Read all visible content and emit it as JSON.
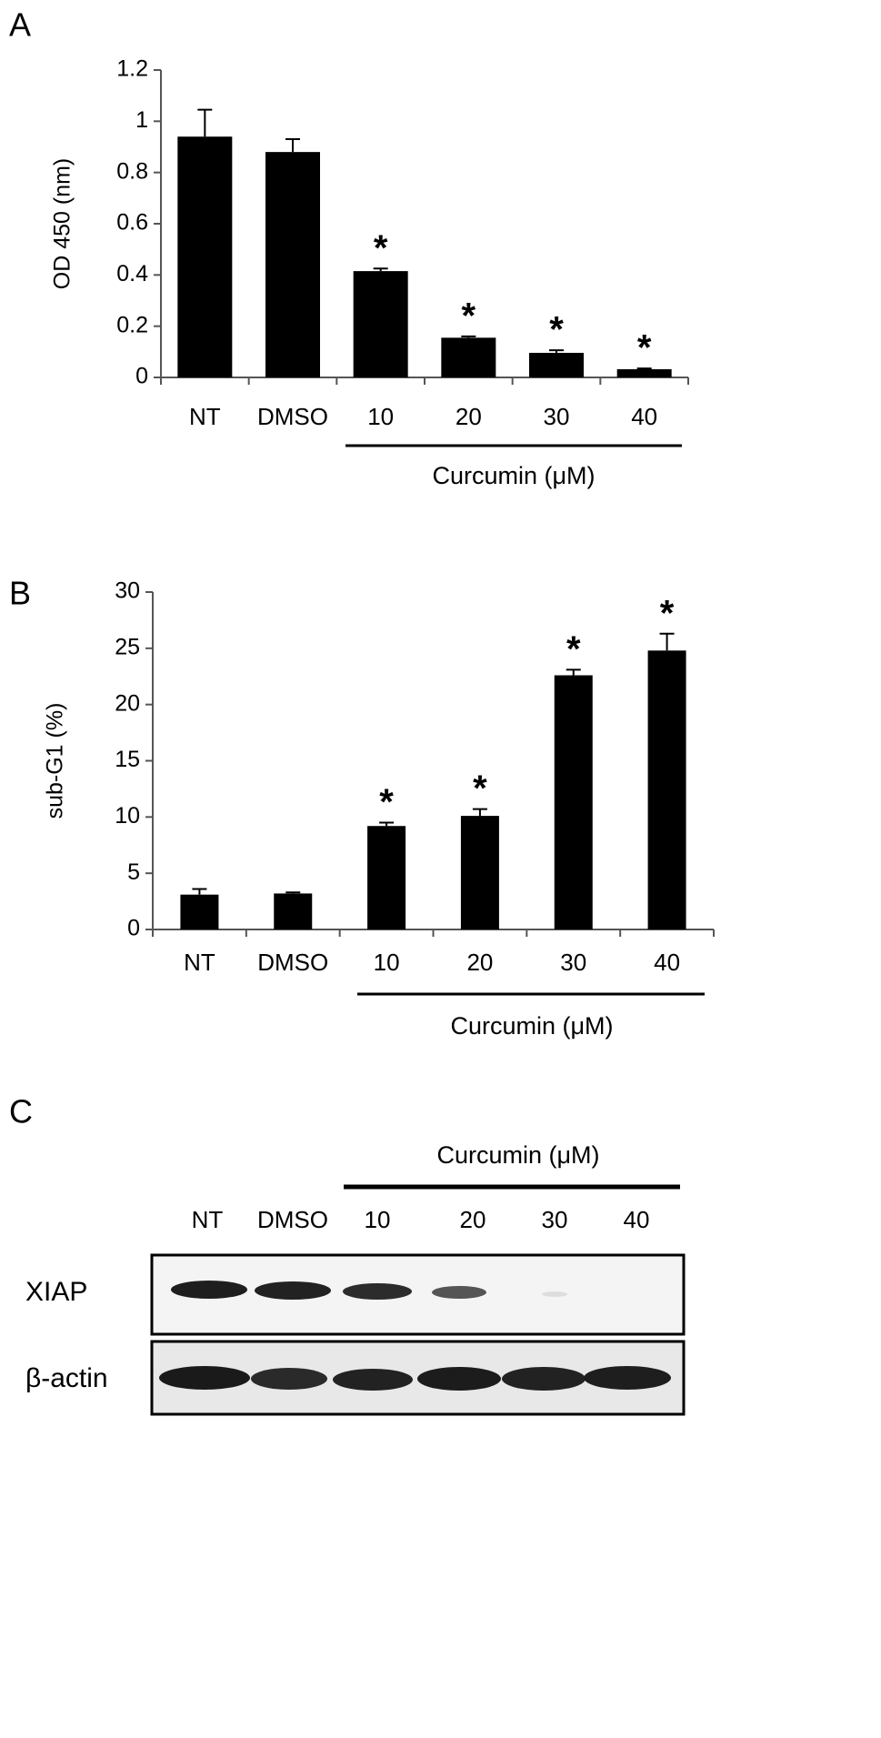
{
  "chart_data": [
    {
      "type": "bar",
      "panel_label": "A",
      "y_label": "OD 450 (nm)",
      "categories": [
        "NT",
        "DMSO",
        "10",
        "20",
        "30",
        "40"
      ],
      "values": [
        0.94,
        0.88,
        0.415,
        0.155,
        0.096,
        0.032
      ],
      "errors": [
        0.105,
        0.05,
        0.01,
        0.005,
        0.01,
        0.003
      ],
      "significance_labels": [
        null,
        null,
        "*",
        "*",
        "*",
        "*"
      ],
      "group_label": "Curcumin (μM)",
      "color": "#000000",
      "ylim": [
        0,
        1.2
      ],
      "yticks": [
        0,
        0.2,
        0.4,
        0.6,
        0.8,
        1,
        1.2
      ]
    },
    {
      "type": "bar",
      "panel_label": "B",
      "y_label": "sub-G1 (%)",
      "categories": [
        "NT",
        "DMSO",
        "10",
        "20",
        "30",
        "40"
      ],
      "values": [
        3.1,
        3.2,
        9.2,
        10.1,
        22.6,
        24.8
      ],
      "errors": [
        0.5,
        0.1,
        0.3,
        0.6,
        0.5,
        1.5
      ],
      "significance_labels": [
        null,
        null,
        "*",
        "*",
        "*",
        "*"
      ],
      "group_label": "Curcumin (μM)",
      "color": "#000000",
      "ylim": [
        0,
        30
      ],
      "yticks": [
        0,
        5,
        10,
        15,
        20,
        25,
        30
      ]
    }
  ],
  "blot": {
    "panel_label": "C",
    "group_label": "Curcumin (μM)",
    "lanes": [
      "NT",
      "DMSO",
      "10",
      "20",
      "30",
      "40"
    ],
    "rows": [
      "XIAP",
      "β-actin"
    ]
  }
}
